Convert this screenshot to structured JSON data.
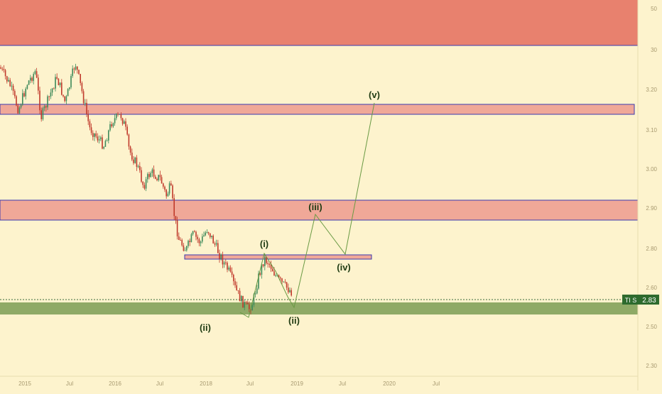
{
  "colors": {
    "background": "#fdf3cd",
    "resistance_zone": "#e8816e",
    "resistance_band": "#f0a898",
    "support_zone": "#8faa66",
    "candle_up": "#3d8a5a",
    "candle_down": "#c0392b",
    "wave_line": "#6a9a44",
    "wave_label": "#1f3b12",
    "price_tag": "#2e6b2e"
  },
  "price_axis": {
    "ticks": [
      "50",
      "30",
      "3.20",
      "3.10",
      "3.00",
      "2.90",
      "2.80",
      "2.60",
      "2.50",
      "2.30"
    ],
    "last_price": "2.83",
    "ticker_tag": "TI S"
  },
  "time_axis": {
    "ticks": [
      "2015",
      "Jul",
      "2016",
      "Jul",
      "2018",
      "Jul",
      "2019",
      "Jul",
      "2020",
      "Jul"
    ]
  },
  "wave_labels": {
    "w1": "(i)",
    "w2_first": "(ii)",
    "w2_second": "(ii)",
    "w3": "(iii)",
    "w4": "(iv)",
    "w5": "(v)"
  },
  "chart_data": {
    "type": "candlestick",
    "title": "",
    "xlabel": "",
    "ylabel": "",
    "legend": "none",
    "grid": false,
    "zones": [
      {
        "kind": "resistance",
        "label": ""
      },
      {
        "kind": "resistance",
        "label": ""
      },
      {
        "kind": "resistance",
        "label": ""
      },
      {
        "kind": "minor-resistance",
        "label": ""
      },
      {
        "kind": "support",
        "label": ""
      }
    ],
    "elliott_projection": [
      "(i)",
      "(ii)",
      "(iii)",
      "(iv)",
      "(v)"
    ]
  }
}
